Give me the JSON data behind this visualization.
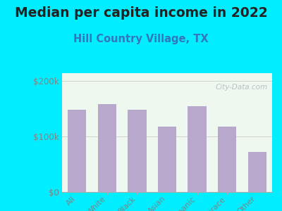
{
  "title": "Median per capita income in 2022",
  "subtitle": "Hill Country Village, TX",
  "categories": [
    "All",
    "White",
    "Black",
    "Asian",
    "Hispanic",
    "Multirace",
    "Other"
  ],
  "values": [
    148000,
    158000,
    148000,
    118000,
    155000,
    118000,
    72000
  ],
  "bar_color": "#b8a8cc",
  "background_outer": "#00eeff",
  "background_inner": "#e8f5e2",
  "title_color": "#222222",
  "subtitle_color": "#3377bb",
  "tick_label_color": "#778888",
  "ytick_labels": [
    "$0",
    "$100k",
    "$200k"
  ],
  "ytick_values": [
    0,
    100000,
    200000
  ],
  "ylim": [
    0,
    215000
  ],
  "watermark": "City-Data.com",
  "title_fontsize": 13.5,
  "subtitle_fontsize": 10.5
}
